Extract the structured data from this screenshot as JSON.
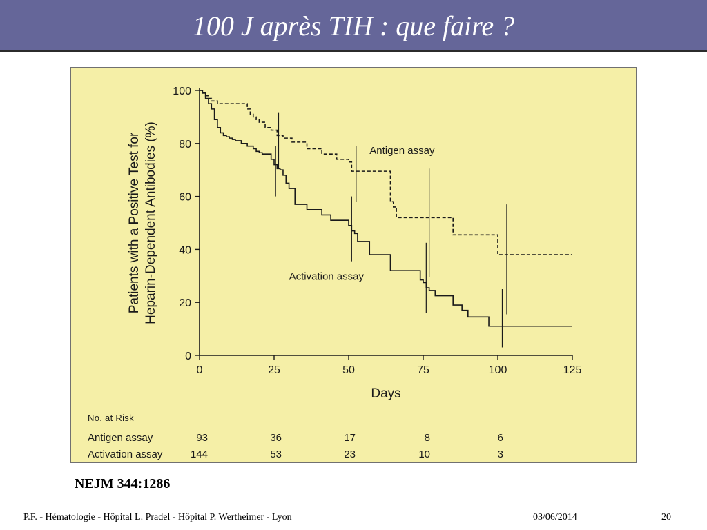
{
  "slide": {
    "title": "100 J après TIH : que faire ?",
    "source": "NEJM 344:1286",
    "footer_left": "P.F. - Hématologie - Hôpital L. Pradel - Hôpital P. Wertheimer - Lyon",
    "footer_date": "03/06/2014",
    "page_number": "20"
  },
  "colors": {
    "title_bar": "#656699",
    "figure_background": "#f5efa7",
    "ink": "#1a1a1a"
  },
  "chart_data": {
    "type": "line",
    "step": true,
    "xlabel": "Days",
    "ylabel_line1": "Patients with a Positive Test for",
    "ylabel_line2": "Heparin-Dependent Antibodies (%)",
    "xlim": [
      0,
      125
    ],
    "ylim": [
      0,
      100
    ],
    "xticks": [
      0,
      25,
      50,
      75,
      100,
      125
    ],
    "yticks": [
      0,
      20,
      40,
      60,
      80,
      100
    ],
    "grid": false,
    "series": [
      {
        "name": "Antigen assay",
        "style": "dashed",
        "x": [
          0,
          1,
          2,
          3,
          4,
          5,
          6,
          7,
          16,
          17,
          18,
          19,
          20,
          22,
          24,
          26,
          28,
          31,
          36,
          41,
          46,
          50,
          51,
          64,
          65,
          66,
          76,
          85,
          100,
          125
        ],
        "y": [
          100,
          99,
          98,
          97,
          96,
          96,
          95,
          95,
          93,
          91,
          90,
          89,
          88,
          86,
          85,
          83,
          82,
          80.5,
          78,
          76,
          74,
          73,
          69.5,
          58,
          56,
          52,
          52,
          45.5,
          38,
          38
        ],
        "error_bars": [
          {
            "x": 26.5,
            "y": 82,
            "low": 70.5,
            "high": 91.5
          },
          {
            "x": 52.5,
            "y": 69.5,
            "low": 58,
            "high": 79
          },
          {
            "x": 77,
            "y": 52,
            "low": 29.5,
            "high": 70.5
          },
          {
            "x": 103,
            "y": 38,
            "low": 15.5,
            "high": 57
          }
        ]
      },
      {
        "name": "Activation assay",
        "style": "solid",
        "x": [
          0,
          1,
          2,
          3,
          4,
          5,
          6,
          7,
          8,
          9,
          10,
          11,
          12,
          14,
          16,
          18,
          19,
          20,
          21,
          24,
          25,
          26,
          27,
          28,
          29,
          30,
          32,
          36,
          41,
          44,
          50,
          51,
          52,
          53,
          57,
          64,
          74,
          75,
          76,
          77,
          79,
          85,
          88,
          90,
          97,
          125
        ],
        "y": [
          100,
          99,
          97,
          95,
          93,
          89,
          86,
          84,
          83,
          82.5,
          82,
          81.5,
          81,
          80,
          79,
          78,
          77,
          76.5,
          76,
          74,
          72,
          70.5,
          70,
          68,
          65,
          63,
          57,
          55,
          53,
          51,
          49,
          47,
          46,
          43,
          38,
          32,
          28.5,
          27.5,
          25.5,
          24.5,
          22.5,
          19,
          17,
          14.5,
          11,
          11
        ],
        "error_bars": [
          {
            "x": 25.5,
            "y": 72,
            "low": 60,
            "high": 79
          },
          {
            "x": 51,
            "y": 47,
            "low": 35.5,
            "high": 60
          },
          {
            "x": 76,
            "y": 27.5,
            "low": 16,
            "high": 42.5
          },
          {
            "x": 101.5,
            "y": 11,
            "low": 3,
            "high": 25
          }
        ]
      }
    ],
    "annotations": [
      {
        "text": "Antigen assay",
        "x": 57,
        "y": 76
      },
      {
        "text": "Activation assay",
        "x": 30,
        "y": 28.5
      }
    ],
    "risk_table": {
      "heading": "No. at Risk",
      "rows": [
        {
          "label": "Antigen assay",
          "values": [
            "93",
            "36",
            "17",
            "8",
            "6"
          ]
        },
        {
          "label": "Activation assay",
          "values": [
            "144",
            "53",
            "23",
            "10",
            "3"
          ]
        }
      ],
      "columns_x": [
        0,
        25,
        50,
        75,
        100
      ]
    }
  }
}
